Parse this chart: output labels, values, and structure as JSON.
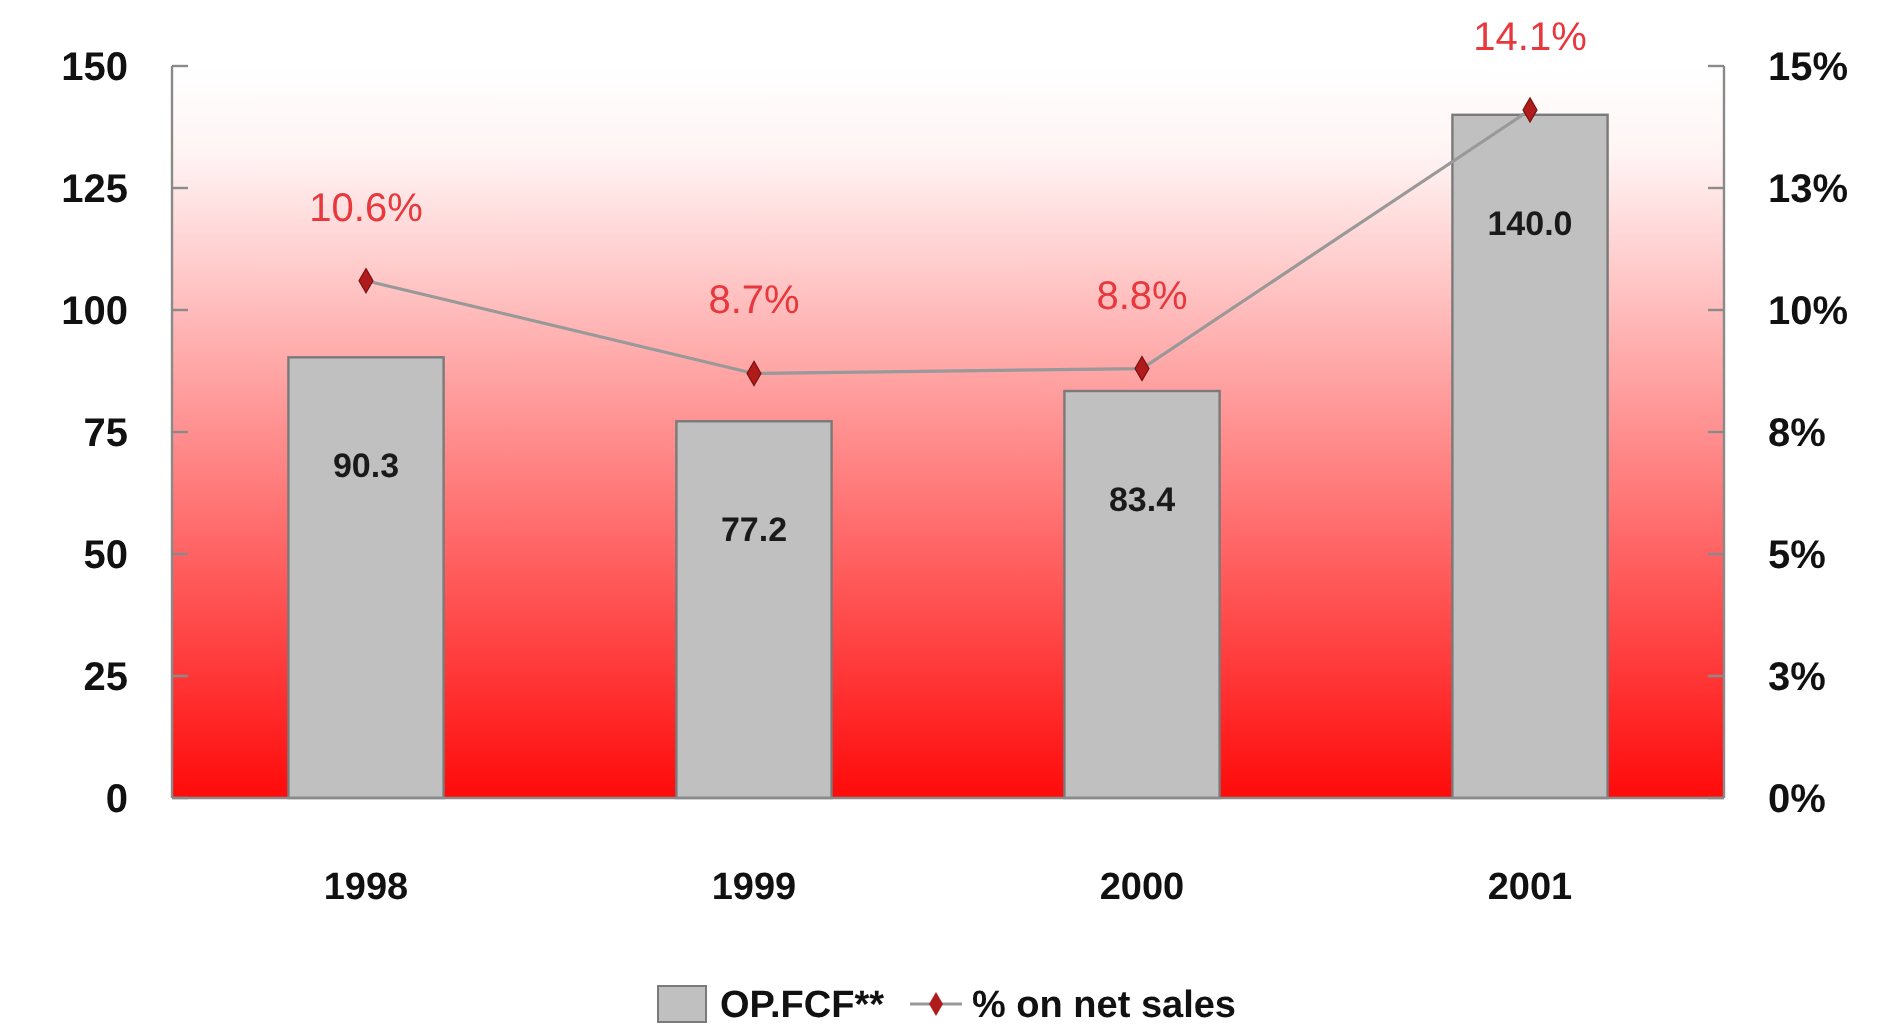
{
  "chart_data": {
    "type": "bar",
    "categories": [
      "1998",
      "1999",
      "2000",
      "2001"
    ],
    "series": [
      {
        "name": "OP.FCF**",
        "color": "#c0c0c0",
        "values": [
          90.3,
          77.2,
          83.4,
          140.0
        ],
        "value_labels": [
          "90.3",
          "77.2",
          "83.4",
          "140.0"
        ]
      },
      {
        "name": "% on net sales",
        "type": "line",
        "axis": "y2",
        "color": "#999999",
        "values": [
          10.6,
          8.7,
          8.8,
          14.1
        ],
        "value_labels": [
          "10.6%",
          "8.7%",
          "8.8%",
          "14.1%"
        ]
      }
    ],
    "ylim": [
      0,
      150
    ],
    "yticks": [
      0,
      25,
      50,
      75,
      100,
      125,
      150
    ],
    "y2lim": [
      0,
      15
    ],
    "y2ticks": [
      {
        "value": 0,
        "label": "0%"
      },
      {
        "value": 2.5,
        "label": "3%"
      },
      {
        "value": 5,
        "label": "5%"
      },
      {
        "value": 7.5,
        "label": "8%"
      },
      {
        "value": 10,
        "label": "10%"
      },
      {
        "value": 12.5,
        "label": "13%"
      },
      {
        "value": 15,
        "label": "15%"
      }
    ],
    "legend": "bottom",
    "marker": "diamond"
  }
}
